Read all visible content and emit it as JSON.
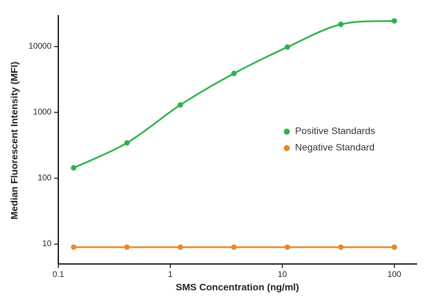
{
  "chart_data": {
    "type": "line",
    "x_label": "SMS Concentration (ng/ml)",
    "y_label": "Median Fluorescent Intensity (MFI)",
    "x": [
      0.137,
      0.41,
      1.23,
      3.7,
      11.1,
      33.3,
      100
    ],
    "series": [
      {
        "name": "Positive Standards",
        "color": "#2fb24a",
        "values": [
          144,
          344,
          1300,
          3900,
          9800,
          21700,
          24500
        ]
      },
      {
        "name": "Negative Standard",
        "color": "#e8872a",
        "values": [
          9,
          9,
          9,
          9,
          9,
          9,
          9
        ]
      }
    ],
    "xlim": [
      0.1,
      160
    ],
    "ylim": [
      5,
      30000
    ],
    "xticks": [
      0.1,
      1,
      10,
      100
    ],
    "yticks": [
      10,
      100,
      1000,
      10000
    ],
    "x_log": true,
    "y_log": true,
    "smooth": true,
    "legend": "center right"
  }
}
